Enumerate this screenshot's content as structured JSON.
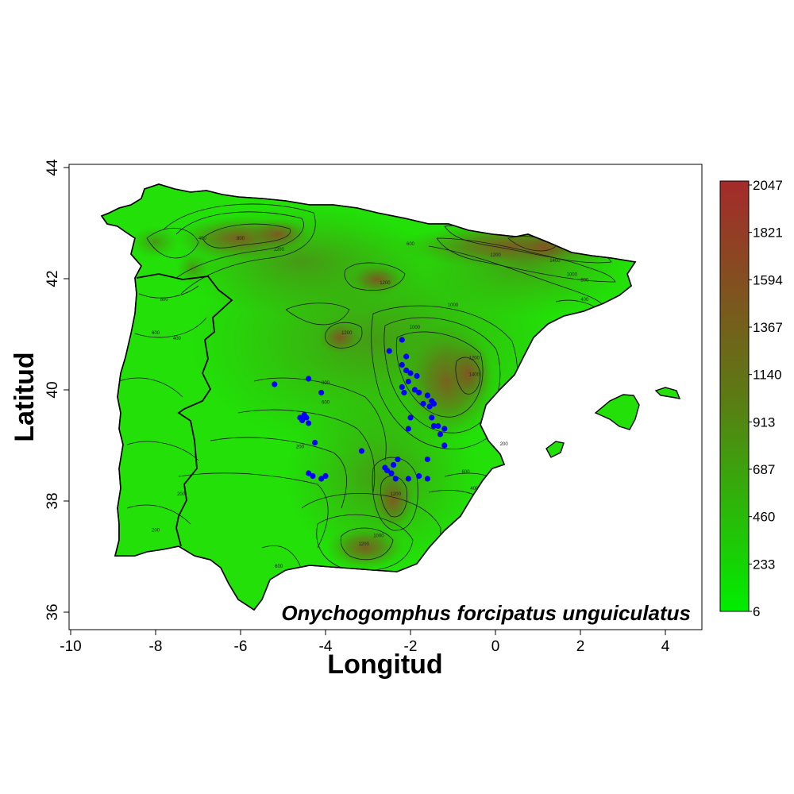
{
  "species_name": "Onychogomphus forcipatus unguiculatus",
  "x_axis": {
    "title": "Longitud",
    "ticks": [
      {
        "value": -10,
        "label": "-10"
      },
      {
        "value": -8,
        "label": "-8"
      },
      {
        "value": -6,
        "label": "-6"
      },
      {
        "value": -4,
        "label": "-4"
      },
      {
        "value": -2,
        "label": "-2"
      },
      {
        "value": 0,
        "label": "0"
      },
      {
        "value": 2,
        "label": "2"
      },
      {
        "value": 4,
        "label": "4"
      }
    ]
  },
  "y_axis": {
    "title": "Latitud",
    "ticks": [
      {
        "value": 36,
        "label": "36"
      },
      {
        "value": 38,
        "label": "38"
      },
      {
        "value": 40,
        "label": "40"
      },
      {
        "value": 42,
        "label": "42"
      },
      {
        "value": 44,
        "label": "44"
      }
    ]
  },
  "legend": {
    "labels": [
      "2047",
      "1821",
      "1594",
      "1367",
      "1140",
      "913",
      "687",
      "460",
      "233",
      "6"
    ],
    "color_high": "#a52a2a",
    "color_mid": "#5c7a14",
    "color_low": "#00ee00"
  },
  "contour_labels": [
    {
      "text": "400",
      "lon": -6.9,
      "lat": 42.7
    },
    {
      "text": "800",
      "lon": -6.0,
      "lat": 42.7
    },
    {
      "text": "1200",
      "lon": -5.1,
      "lat": 42.5
    },
    {
      "text": "600",
      "lon": -2.0,
      "lat": 42.6
    },
    {
      "text": "1200",
      "lon": -2.6,
      "lat": 41.9
    },
    {
      "text": "1000",
      "lon": -1.9,
      "lat": 41.1
    },
    {
      "text": "1200",
      "lon": -3.5,
      "lat": 41.0
    },
    {
      "text": "800",
      "lon": -4.0,
      "lat": 40.1
    },
    {
      "text": "600",
      "lon": -4.0,
      "lat": 39.75
    },
    {
      "text": "1200",
      "lon": -0.5,
      "lat": 40.55
    },
    {
      "text": "1400",
      "lon": -0.5,
      "lat": 40.25
    },
    {
      "text": "1000",
      "lon": -1.0,
      "lat": 41.5
    },
    {
      "text": "200",
      "lon": -4.6,
      "lat": 38.95
    },
    {
      "text": "1200",
      "lon": -2.35,
      "lat": 38.1
    },
    {
      "text": "1000",
      "lon": -2.75,
      "lat": 37.35
    },
    {
      "text": "1200",
      "lon": -3.1,
      "lat": 37.2
    },
    {
      "text": "600",
      "lon": -5.1,
      "lat": 36.8
    },
    {
      "text": "200",
      "lon": -7.4,
      "lat": 38.1
    },
    {
      "text": "200",
      "lon": -8.0,
      "lat": 37.45
    },
    {
      "text": "800",
      "lon": -7.8,
      "lat": 41.6
    },
    {
      "text": "600",
      "lon": -8.0,
      "lat": 41.0
    },
    {
      "text": "400",
      "lon": -7.5,
      "lat": 40.9
    },
    {
      "text": "1200",
      "lon": 0.0,
      "lat": 42.4
    },
    {
      "text": "1400",
      "lon": 1.4,
      "lat": 42.3
    },
    {
      "text": "1000",
      "lon": 1.8,
      "lat": 42.05
    },
    {
      "text": "800",
      "lon": 2.1,
      "lat": 41.95
    },
    {
      "text": "400",
      "lon": 2.1,
      "lat": 41.6
    },
    {
      "text": "600",
      "lon": -0.7,
      "lat": 38.5
    },
    {
      "text": "400",
      "lon": -0.5,
      "lat": 38.2
    },
    {
      "text": "200",
      "lon": 0.2,
      "lat": 39.0
    }
  ],
  "occurrences": [
    [
      -5.2,
      40.1
    ],
    [
      -4.4,
      40.2
    ],
    [
      -4.1,
      39.95
    ],
    [
      -4.6,
      39.5
    ],
    [
      -4.55,
      39.45
    ],
    [
      -4.5,
      39.55
    ],
    [
      -4.45,
      39.5
    ],
    [
      -4.4,
      39.4
    ],
    [
      -4.25,
      39.05
    ],
    [
      -4.4,
      38.5
    ],
    [
      -4.3,
      38.45
    ],
    [
      -4.1,
      38.4
    ],
    [
      -4.0,
      38.45
    ],
    [
      -3.15,
      38.9
    ],
    [
      -2.5,
      40.7
    ],
    [
      -2.2,
      40.9
    ],
    [
      -2.1,
      40.6
    ],
    [
      -2.2,
      40.45
    ],
    [
      -2.1,
      40.35
    ],
    [
      -2.0,
      40.3
    ],
    [
      -2.05,
      40.15
    ],
    [
      -2.2,
      40.05
    ],
    [
      -2.15,
      39.95
    ],
    [
      -1.85,
      40.25
    ],
    [
      -1.9,
      40.0
    ],
    [
      -1.8,
      39.95
    ],
    [
      -1.7,
      39.75
    ],
    [
      -1.6,
      39.9
    ],
    [
      -1.55,
      39.7
    ],
    [
      -1.5,
      39.8
    ],
    [
      -1.45,
      39.75
    ],
    [
      -2.0,
      39.5
    ],
    [
      -2.05,
      39.3
    ],
    [
      -1.5,
      39.5
    ],
    [
      -1.45,
      39.35
    ],
    [
      -1.35,
      39.35
    ],
    [
      -1.3,
      39.2
    ],
    [
      -1.2,
      39.3
    ],
    [
      -1.2,
      39.0
    ],
    [
      -1.6,
      38.75
    ],
    [
      -2.6,
      38.6
    ],
    [
      -2.55,
      38.55
    ],
    [
      -2.4,
      38.65
    ],
    [
      -2.3,
      38.75
    ],
    [
      -2.45,
      38.5
    ],
    [
      -2.35,
      38.4
    ],
    [
      -2.05,
      38.4
    ],
    [
      -1.8,
      38.45
    ],
    [
      -1.6,
      38.4
    ]
  ]
}
